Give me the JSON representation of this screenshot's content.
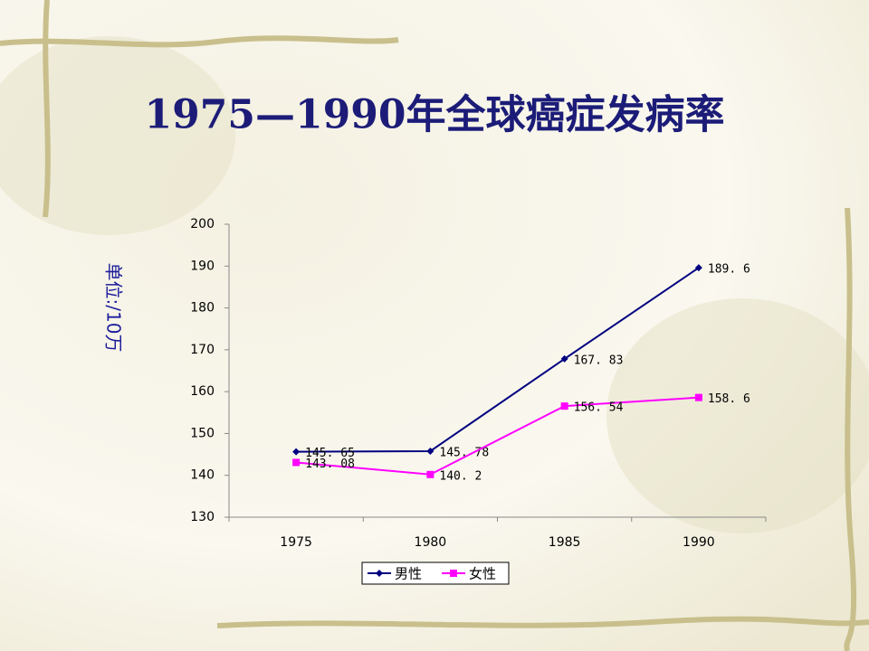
{
  "chart_data": {
    "type": "line",
    "title": "1975—1990年全球癌症发病率",
    "y_label": "单位:/10万",
    "categories": [
      "1975",
      "1980",
      "1985",
      "1990"
    ],
    "series": [
      {
        "name": "男性",
        "color": "#000080",
        "marker": "diamond",
        "values": [
          145.65,
          145.78,
          167.83,
          189.6
        ],
        "value_labels": [
          "145. 65",
          "145. 78",
          "167. 83",
          "189. 6"
        ]
      },
      {
        "name": "女性",
        "color": "#ff00ff",
        "marker": "square",
        "values": [
          143.08,
          140.2,
          156.54,
          158.6
        ],
        "value_labels": [
          "143. 08",
          "140. 2",
          "156. 54",
          "158. 6"
        ]
      }
    ],
    "ylim": [
      130,
      200
    ],
    "yticks": [
      130,
      140,
      150,
      160,
      170,
      180,
      190,
      200
    ],
    "grid": false,
    "legend": "bottom"
  }
}
